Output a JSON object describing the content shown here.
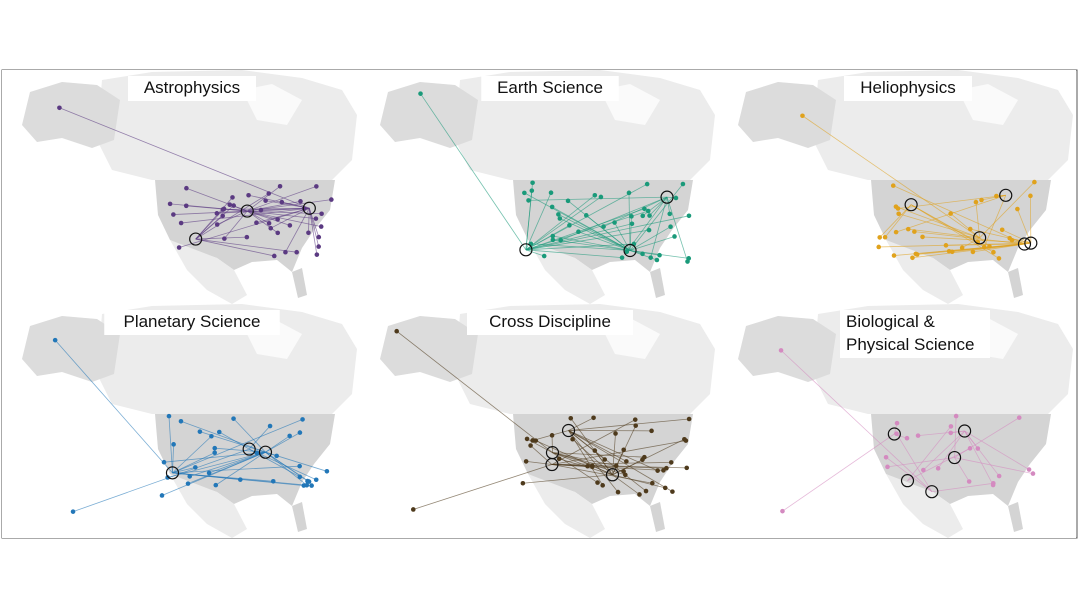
{
  "panels": [
    {
      "title": [
        "Astrophysics"
      ],
      "color": "#5b3a82"
    },
    {
      "title": [
        "Earth Science"
      ],
      "color": "#1a9a7a"
    },
    {
      "title": [
        "Heliophysics"
      ],
      "color": "#e0a21c"
    },
    {
      "title": [
        "Planetary Science"
      ],
      "color": "#2277b8"
    },
    {
      "title": [
        "Cross Discipline"
      ],
      "color": "#4e3a1c"
    },
    {
      "title": [
        "Biological &",
        "Physical Science"
      ],
      "color": "#d48ac0"
    }
  ]
}
